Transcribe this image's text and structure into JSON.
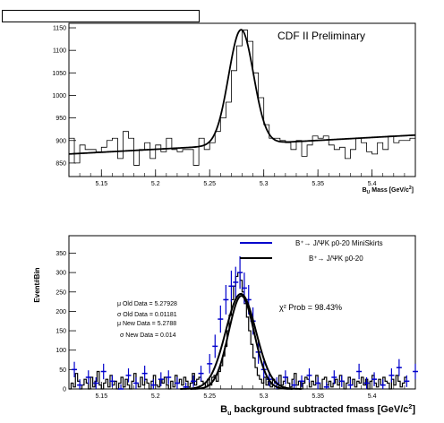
{
  "header_box_label": "",
  "chart_data": [
    {
      "type": "line",
      "title": "CDF II Preliminary",
      "xlabel": "B_U Mass [GeV/c^2]",
      "xlabel_main": "B",
      "xlabel_sub": "U",
      "xlabel_rest": " Mass [GeV/c",
      "xlabel_sup": "2",
      "xlabel_end": "]",
      "ylabel": "",
      "xlim": [
        5.12,
        5.44
      ],
      "ylim": [
        820,
        1160
      ],
      "x_ticks": [
        "5.15",
        "5.2",
        "5.25",
        "5.3",
        "5.35",
        "5.4"
      ],
      "y_ticks": [
        "850",
        "900",
        "950",
        "1000",
        "1050",
        "1100",
        "1150"
      ],
      "histogram": {
        "bin_edges_start": 5.12,
        "bin_width": 0.005,
        "values": [
          905,
          850,
          890,
          880,
          880,
          875,
          885,
          900,
          905,
          860,
          920,
          905,
          845,
          880,
          895,
          860,
          890,
          875,
          905,
          880,
          875,
          880,
          880,
          845,
          905,
          880,
          895,
          920,
          950,
          985,
          1055,
          1110,
          1145,
          1120,
          1050,
          995,
          935,
          905,
          905,
          900,
          895,
          880,
          900,
          865,
          890,
          910,
          905,
          910,
          890,
          880,
          885,
          860,
          880,
          905,
          895,
          875,
          870,
          895,
          880,
          910,
          895,
          900,
          900,
          905
        ]
      },
      "fit": {
        "baseline_start": 870,
        "baseline_end": 912,
        "peak_mean": 5.279,
        "peak_sigma": 0.0115,
        "peak_height": 255
      }
    },
    {
      "type": "line",
      "title": "",
      "xlabel": "B_u background subtracted fmass [GeV/c^2]",
      "xlabel_main": "B",
      "xlabel_sub": "u",
      "xlabel_rest": " background subtracted fmass [GeV/c",
      "xlabel_sup": "2",
      "xlabel_end": "]",
      "ylabel": "Event#Bin",
      "xlim": [
        5.12,
        5.44
      ],
      "ylim": [
        0,
        395
      ],
      "x_ticks": [
        "5.15",
        "5.2",
        "5.25",
        "5.3",
        "5.35",
        "5.4"
      ],
      "y_ticks": [
        "0",
        "50",
        "100",
        "150",
        "200",
        "250",
        "300",
        "350"
      ],
      "legend": [
        {
          "name": "B⁺→ J/ΨK p0-20 MiniSkirts",
          "color": "#0000cc"
        },
        {
          "name": "B⁺→ J/ΨK p0-20",
          "color": "#000000"
        }
      ],
      "annotations": {
        "chi2": "χ² Prob = 98.43%",
        "stats": [
          "μ Old Data = 5.27928",
          "σ Old Data =  0.01181",
          "μ New Data = 5.2788",
          "σ New Data =  0.014"
        ]
      },
      "series": [
        {
          "name": "B⁺→ J/ΨK p0-20",
          "color": "#000000",
          "bin_edges_start": 5.12,
          "bin_width": 0.002,
          "values": [
            0,
            15,
            5,
            40,
            20,
            0,
            10,
            25,
            15,
            0,
            30,
            5,
            20,
            45,
            10,
            0,
            15,
            25,
            5,
            35,
            10,
            20,
            0,
            15,
            30,
            5,
            25,
            10,
            0,
            20,
            40,
            15,
            5,
            30,
            10,
            25,
            15,
            0,
            20,
            35,
            10,
            5,
            25,
            15,
            30,
            10,
            0,
            20,
            5,
            35,
            15,
            25,
            10,
            30,
            20,
            5,
            15,
            40,
            10,
            25,
            30,
            20,
            15,
            5,
            25,
            10,
            30,
            35,
            20,
            45,
            60,
            85,
            110,
            150,
            190,
            230,
            265,
            290,
            300,
            280,
            250,
            220,
            185,
            150,
            115,
            80,
            55,
            35,
            25,
            15,
            30,
            10,
            20,
            5,
            25,
            15,
            0,
            35,
            10,
            20,
            30,
            15,
            5,
            25,
            40,
            10,
            20,
            0,
            15,
            30,
            25,
            5,
            20,
            10,
            35,
            15,
            0,
            25,
            30,
            10,
            20,
            5,
            15,
            25,
            10,
            35,
            20,
            0,
            15,
            30,
            10,
            25,
            5,
            20,
            15,
            30,
            10,
            25,
            0,
            20,
            35,
            15,
            5,
            25,
            10,
            30,
            20,
            15,
            0,
            25,
            10,
            35,
            20,
            5,
            15,
            30
          ]
        },
        {
          "name": "B⁺→ J/ΨK p0-20 MiniSkirts",
          "color": "#0000cc",
          "x": [
            5.125,
            5.13,
            5.138,
            5.145,
            5.152,
            5.16,
            5.168,
            5.175,
            5.182,
            5.19,
            5.198,
            5.205,
            5.212,
            5.22,
            5.228,
            5.235,
            5.242,
            5.25,
            5.255,
            5.26,
            5.265,
            5.27,
            5.274,
            5.278,
            5.282,
            5.286,
            5.29,
            5.295,
            5.3,
            5.305,
            5.312,
            5.32,
            5.328,
            5.335,
            5.342,
            5.35,
            5.358,
            5.365,
            5.372,
            5.38,
            5.388,
            5.395,
            5.402,
            5.41,
            5.418,
            5.425,
            5.432,
            5.44
          ],
          "y": [
            50,
            10,
            30,
            15,
            45,
            20,
            0,
            35,
            15,
            40,
            10,
            25,
            30,
            15,
            5,
            20,
            40,
            65,
            110,
            180,
            230,
            265,
            275,
            300,
            260,
            230,
            175,
            95,
            50,
            25,
            15,
            30,
            10,
            20,
            35,
            15,
            5,
            30,
            20,
            10,
            45,
            15,
            25,
            10,
            35,
            55,
            20,
            45
          ],
          "err": [
            20,
            15,
            18,
            15,
            20,
            15,
            12,
            18,
            15,
            20,
            15,
            18,
            18,
            15,
            12,
            15,
            20,
            25,
            30,
            35,
            38,
            40,
            40,
            42,
            40,
            38,
            35,
            30,
            22,
            18,
            15,
            18,
            15,
            15,
            18,
            15,
            12,
            18,
            15,
            15,
            20,
            15,
            18,
            15,
            18,
            22,
            15,
            20
          ]
        }
      ],
      "fit_old": {
        "mean": 5.27928,
        "sigma": 0.01181,
        "amplitude": 240
      },
      "fit_new": {
        "mean": 5.2788,
        "sigma": 0.014,
        "amplitude": 245
      }
    }
  ]
}
